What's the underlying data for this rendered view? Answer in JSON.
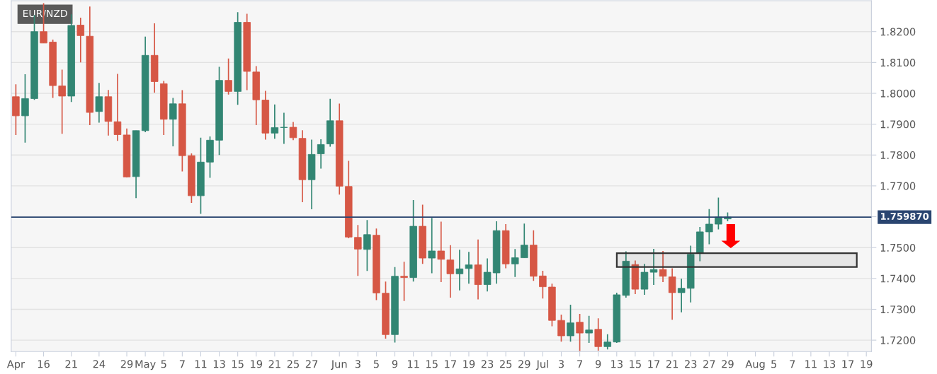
{
  "chart_data": {
    "type": "candlestick",
    "title": "EUR/NZD",
    "categories": [
      "Apr",
      null,
      null,
      "16",
      null,
      null,
      "21",
      null,
      null,
      "24",
      null,
      null,
      "29",
      null,
      "May",
      null,
      "5",
      null,
      "7",
      null,
      "11",
      null,
      "13",
      null,
      "15",
      null,
      "19",
      null,
      "21",
      null,
      "25",
      null,
      "27",
      null,
      null,
      "Jun",
      null,
      "3",
      null,
      "5",
      null,
      "9",
      null,
      "11",
      null,
      "15",
      null,
      "17",
      null,
      "19",
      null,
      "23",
      null,
      "25",
      null,
      "29",
      null,
      "Jul",
      null,
      "3",
      null,
      "7",
      null,
      "9",
      null,
      "13",
      null,
      "15",
      null,
      "17",
      null,
      "21",
      null,
      "23",
      null,
      "27",
      null,
      "29",
      null,
      null,
      "Aug",
      null,
      "5",
      null,
      "7",
      null,
      "11",
      null,
      "13",
      null,
      "17",
      null,
      "19"
    ],
    "ohlc": [
      [
        1.7989,
        1.8029,
        1.7865,
        1.7927
      ],
      [
        1.7927,
        1.8062,
        1.784,
        1.7983
      ],
      [
        1.7983,
        1.8254,
        1.7979,
        1.82
      ],
      [
        1.82,
        1.8292,
        1.8163,
        1.8163
      ],
      [
        1.8166,
        1.8174,
        1.7985,
        1.8025
      ],
      [
        1.8024,
        1.8077,
        1.7869,
        1.7991
      ],
      [
        1.7991,
        1.8256,
        1.7972,
        1.822
      ],
      [
        1.8221,
        1.8245,
        1.81,
        1.8187
      ],
      [
        1.8185,
        1.8281,
        1.7897,
        1.7938
      ],
      [
        1.7941,
        1.8034,
        1.7905,
        1.7989
      ],
      [
        1.7989,
        1.8011,
        1.7863,
        1.7909
      ],
      [
        1.7908,
        1.8063,
        1.7846,
        1.7866
      ],
      [
        1.7865,
        1.7886,
        1.7727,
        1.7729
      ],
      [
        1.773,
        1.7879,
        1.766,
        1.7879
      ],
      [
        1.7879,
        1.8184,
        1.7874,
        1.8123
      ],
      [
        1.8123,
        1.8227,
        1.8002,
        1.8038
      ],
      [
        1.8031,
        1.804,
        1.7865,
        1.7916
      ],
      [
        1.7916,
        1.7985,
        1.7828,
        1.7966
      ],
      [
        1.7966,
        1.801,
        1.7747,
        1.7798
      ],
      [
        1.7798,
        1.7805,
        1.7645,
        1.7668
      ],
      [
        1.7668,
        1.7856,
        1.7609,
        1.7777
      ],
      [
        1.7777,
        1.786,
        1.7726,
        1.7848
      ],
      [
        1.7848,
        1.8086,
        1.78,
        1.8042
      ],
      [
        1.8042,
        1.8113,
        1.7996,
        1.8006
      ],
      [
        1.8006,
        1.8263,
        1.7963,
        1.823
      ],
      [
        1.823,
        1.8258,
        1.801,
        1.8071
      ],
      [
        1.8069,
        1.8088,
        1.7897,
        1.7979
      ],
      [
        1.7978,
        1.8008,
        1.785,
        1.7871
      ],
      [
        1.7871,
        1.7964,
        1.7853,
        1.7889
      ],
      [
        1.7889,
        1.7937,
        1.7836,
        1.789
      ],
      [
        1.789,
        1.7907,
        1.7848,
        1.7856
      ],
      [
        1.7854,
        1.788,
        1.7647,
        1.772
      ],
      [
        1.772,
        1.785,
        1.7624,
        1.7802
      ],
      [
        1.7804,
        1.7851,
        1.7756,
        1.7834
      ],
      [
        1.7836,
        1.7982,
        1.7827,
        1.7911
      ],
      [
        1.7911,
        1.7967,
        1.7672,
        1.7699
      ],
      [
        1.7698,
        1.7781,
        1.753,
        1.7534
      ],
      [
        1.7533,
        1.7573,
        1.7408,
        1.7495
      ],
      [
        1.7494,
        1.7589,
        1.7424,
        1.7542
      ],
      [
        1.754,
        1.7562,
        1.733,
        1.7353
      ],
      [
        1.7352,
        1.739,
        1.7205,
        1.7218
      ],
      [
        1.7218,
        1.7437,
        1.7192,
        1.7407
      ],
      [
        1.7407,
        1.7454,
        1.7327,
        1.7403
      ],
      [
        1.7403,
        1.7654,
        1.739,
        1.7569
      ],
      [
        1.7569,
        1.7639,
        1.7447,
        1.7466
      ],
      [
        1.7466,
        1.7596,
        1.7417,
        1.7489
      ],
      [
        1.7489,
        1.7584,
        1.7388,
        1.7462
      ],
      [
        1.746,
        1.7508,
        1.7338,
        1.7415
      ],
      [
        1.7415,
        1.7493,
        1.7361,
        1.7431
      ],
      [
        1.7432,
        1.7486,
        1.7383,
        1.7444
      ],
      [
        1.7444,
        1.7526,
        1.7332,
        1.738
      ],
      [
        1.738,
        1.7465,
        1.7358,
        1.742
      ],
      [
        1.7418,
        1.7585,
        1.7383,
        1.7555
      ],
      [
        1.7555,
        1.7576,
        1.7433,
        1.7447
      ],
      [
        1.7447,
        1.7495,
        1.7405,
        1.7467
      ],
      [
        1.7467,
        1.7578,
        1.7467,
        1.7508
      ],
      [
        1.7508,
        1.7556,
        1.7392,
        1.7407
      ],
      [
        1.7408,
        1.7425,
        1.7335,
        1.7373
      ],
      [
        1.7372,
        1.7383,
        1.7245,
        1.7264
      ],
      [
        1.7264,
        1.7283,
        1.7195,
        1.7214
      ],
      [
        1.7214,
        1.7315,
        1.7195,
        1.7256
      ],
      [
        1.7258,
        1.7285,
        1.7165,
        1.7223
      ],
      [
        1.7223,
        1.7279,
        1.7191,
        1.7233
      ],
      [
        1.7235,
        1.7271,
        1.7166,
        1.7179
      ],
      [
        1.7179,
        1.7219,
        1.717,
        1.7194
      ],
      [
        1.7194,
        1.7354,
        1.7191,
        1.7347
      ],
      [
        1.7345,
        1.7488,
        1.7338,
        1.7456
      ],
      [
        1.7445,
        1.7458,
        1.7349,
        1.7365
      ],
      [
        1.7365,
        1.7447,
        1.7347,
        1.742
      ],
      [
        1.742,
        1.7496,
        1.7379,
        1.7429
      ],
      [
        1.7429,
        1.7489,
        1.7388,
        1.7407
      ],
      [
        1.7405,
        1.7433,
        1.7266,
        1.7354
      ],
      [
        1.7354,
        1.7399,
        1.729,
        1.7368
      ],
      [
        1.7368,
        1.7506,
        1.7322,
        1.7478
      ],
      [
        1.7482,
        1.7567,
        1.7456,
        1.7551
      ],
      [
        1.7551,
        1.7625,
        1.7511,
        1.7576
      ],
      [
        1.7576,
        1.7662,
        1.7559,
        1.7599
      ],
      [
        1.7593,
        1.7614,
        1.7585,
        1.7599
      ],
      null,
      null,
      null,
      null,
      null,
      null,
      null,
      null,
      null,
      null,
      null,
      null,
      null,
      null,
      null
    ],
    "colors": [
      "#d65745",
      "#328673",
      "#328673",
      "#d65745",
      "#d65745",
      "#d65745",
      "#328673",
      "#d65745",
      "#d65745",
      "#328673",
      "#d65745",
      "#d65745",
      "#d65745",
      "#328673",
      "#328673",
      "#d65745",
      "#d65745",
      "#328673",
      "#d65745",
      "#d65745",
      "#328673",
      "#328673",
      "#328673",
      "#d65745",
      "#328673",
      "#d65745",
      "#d65745",
      "#d65745",
      "#328673",
      "#328673",
      "#d65745",
      "#d65745",
      "#328673",
      "#328673",
      "#328673",
      "#d65745",
      "#d65745",
      "#d65745",
      "#328673",
      "#d65745",
      "#d65745",
      "#328673",
      "#d65745",
      "#328673",
      "#d65745",
      "#328673",
      "#d65745",
      "#d65745",
      "#328673",
      "#328673",
      "#d65745",
      "#328673",
      "#328673",
      "#d65745",
      "#328673",
      "#328673",
      "#d65745",
      "#d65745",
      "#d65745",
      "#d65745",
      "#328673",
      "#d65745",
      "#328673",
      "#d65745",
      "#328673",
      "#328673",
      "#328673",
      "#d65745",
      "#328673",
      "#328673",
      "#d65745",
      "#d65745",
      "#328673",
      "#328673",
      "#328673",
      "#328673",
      "#328673",
      "#328673",
      null,
      null,
      null,
      null,
      null,
      null,
      null,
      null,
      null,
      null,
      null,
      null,
      null,
      null,
      null
    ],
    "ylim": [
      1.7163,
      1.83
    ],
    "yticks": [
      {
        "value": 1.72,
        "label": "1.7200"
      },
      {
        "value": 1.73,
        "label": "1.7300"
      },
      {
        "value": 1.74,
        "label": "1.7400"
      },
      {
        "value": 1.75,
        "label": "1.7500"
      },
      {
        "value": 1.76,
        "label": null
      },
      {
        "value": 1.77,
        "label": "1.7700"
      },
      {
        "value": 1.78,
        "label": "1.7800"
      },
      {
        "value": 1.79,
        "label": "1.7900"
      },
      {
        "value": 1.8,
        "label": "1.8000"
      },
      {
        "value": 1.81,
        "label": "1.8100"
      },
      {
        "value": 1.82,
        "label": "1.8200"
      }
    ],
    "grid": "y",
    "ref_lines": [
      {
        "axis": "y",
        "value": 1.75987,
        "label": "1.759870",
        "color": "#2a4570"
      }
    ],
    "bands": [
      {
        "axis": "y",
        "from": 1.7437,
        "to": 1.7482,
        "color": "#333333"
      }
    ]
  }
}
